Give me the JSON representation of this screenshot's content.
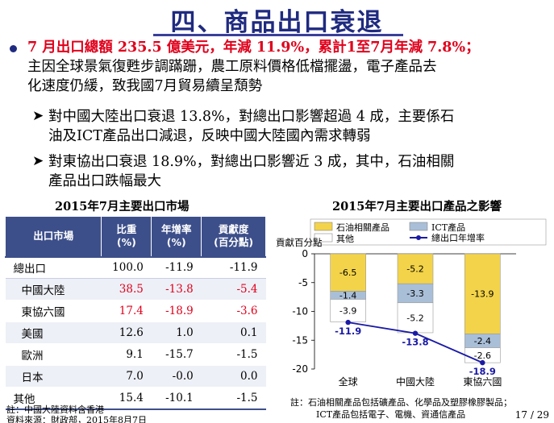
{
  "title": "四、商品出口衰退",
  "main_bullet": {
    "highlight": "7 月出口總額 235.5 億美元，年減 11.9%，累計1至7月年減 7.8%；",
    "line2": "主因全球景氣復甦步調蹣跚，農工原料價格低檔擺盪，電子產品去",
    "line3": "化速度仍緩，致我國7月貿易續呈頹勢"
  },
  "sub_bullets": [
    {
      "line1": "對中國大陸出口衰退 13.8%，對總出口影響超過 4 成，主要係石",
      "line2": "油及ICT產品出口減退，反映中國大陸國內需求轉弱"
    },
    {
      "line1": "對東協出口衰退 18.9%，對總出口影響近 3 成，其中，石油相關",
      "line2": "產品出口跌幅最大"
    }
  ],
  "table_section": {
    "title": "2015年7月主要出口市場",
    "headers": [
      "出口市場",
      "比重\n(%)",
      "年增率\n(%)",
      "貢獻度\n(百分點)"
    ],
    "rows": [
      {
        "name": "總出口",
        "share": "100.0",
        "growth": "-11.9",
        "contrib": "-11.9"
      },
      {
        "name": "中國大陸",
        "share": "38.5",
        "growth": "-13.8",
        "contrib": "-5.4"
      },
      {
        "name": "東協六國",
        "share": "17.4",
        "growth": "-18.9",
        "contrib": "-3.6"
      },
      {
        "name": "美國",
        "share": "12.6",
        "growth": "1.0",
        "contrib": "0.1"
      },
      {
        "name": "歐洲",
        "share": "9.1",
        "growth": "-15.7",
        "contrib": "-1.5"
      },
      {
        "name": "日本",
        "share": "7.0",
        "growth": "-0.0",
        "contrib": "0.0"
      },
      {
        "name": "其他",
        "share": "15.4",
        "growth": "-10.1",
        "contrib": "-1.5"
      }
    ],
    "note1": "註：中國大陸資料含香港",
    "note2": "資料來源：財政部，2015年8月7日"
  },
  "chart_section": {
    "title": "2015年7月主要出口產品之影響",
    "note1": "註：石油相關產品包括礦產品、化學品及塑膠橡膠製品；",
    "note2": "ICT產品包括電子、電機、資通信產品"
  },
  "chart_data": {
    "type": "bar",
    "stacked": true,
    "ylabel": "貢獻百分點",
    "ylim": [
      -20,
      0
    ],
    "yticks": [
      0,
      -5,
      -10,
      -15,
      -20
    ],
    "categories": [
      "全球",
      "中國大陸",
      "東協六國"
    ],
    "series": [
      {
        "name": "石油相關產品",
        "values": [
          -6.5,
          -5.2,
          -13.9
        ],
        "color": "#f3d349"
      },
      {
        "name": "ICT產品",
        "values": [
          -1.4,
          -3.3,
          -2.4
        ],
        "color": "#a9bfd8"
      },
      {
        "name": "其他",
        "values": [
          -3.9,
          -5.2,
          -2.6
        ],
        "color": "#ffffff"
      }
    ],
    "line": {
      "name": "總出口年增率",
      "values": [
        -11.9,
        -13.8,
        -18.9
      ],
      "color": "#1a1aa6"
    },
    "legend_position": "top"
  },
  "page_number": "17 / 29"
}
